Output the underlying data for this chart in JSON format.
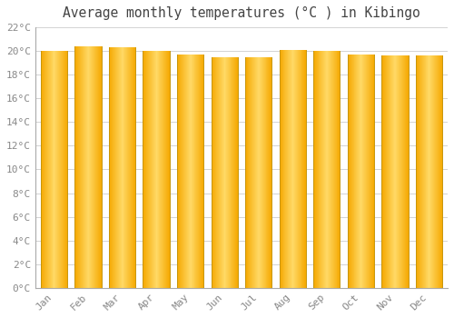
{
  "title": "Average monthly temperatures (°C ) in Kibingo",
  "months": [
    "Jan",
    "Feb",
    "Mar",
    "Apr",
    "May",
    "Jun",
    "Jul",
    "Aug",
    "Sep",
    "Oct",
    "Nov",
    "Dec"
  ],
  "temperatures": [
    20.0,
    20.4,
    20.3,
    20.0,
    19.7,
    19.5,
    19.5,
    20.1,
    20.0,
    19.7,
    19.6,
    19.6
  ],
  "ylim": [
    0,
    22
  ],
  "yticks": [
    0,
    2,
    4,
    6,
    8,
    10,
    12,
    14,
    16,
    18,
    20,
    22
  ],
  "bar_color_center": "#FFD966",
  "bar_color_edge": "#F5A800",
  "bar_edge_color": "#C8960A",
  "background_color": "#FFFFFF",
  "grid_color": "#CCCCCC",
  "title_color": "#444444",
  "tick_label_color": "#888888",
  "title_fontsize": 10.5,
  "tick_fontsize": 8
}
